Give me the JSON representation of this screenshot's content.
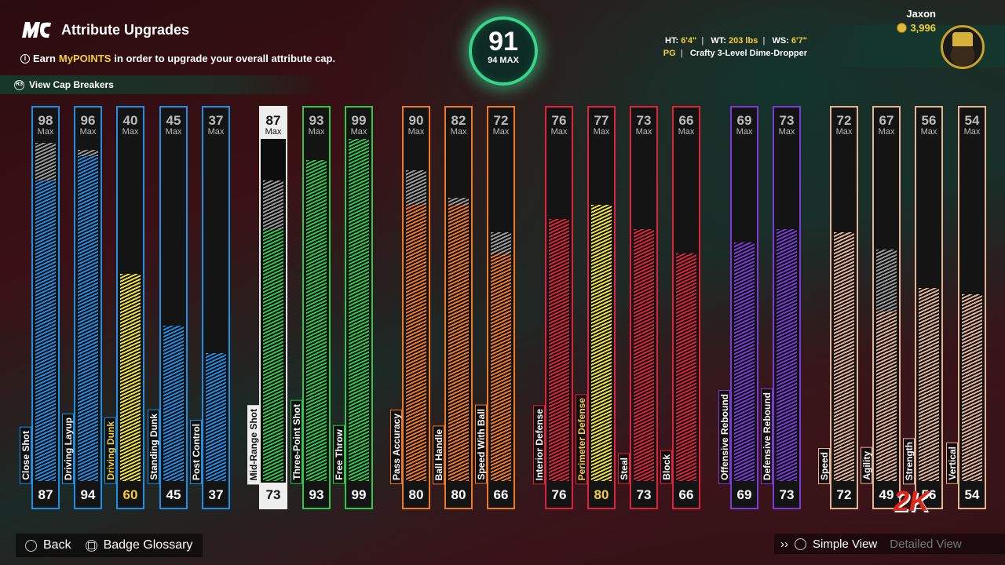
{
  "header": {
    "logo": "MC",
    "title": "Attribute Upgrades",
    "info_prefix": "Earn",
    "info_highlight": "MyPOINTS",
    "info_suffix": "in order to upgrade your overall attribute cap.",
    "cap_breakers_label": "View Cap Breakers"
  },
  "overall": {
    "value": "91",
    "max_label": "94 MAX"
  },
  "player": {
    "ht_label": "HT:",
    "ht": "6'4\"",
    "wt_label": "WT:",
    "wt": "203 lbs",
    "ws_label": "WS:",
    "ws": "6'7\"",
    "position": "PG",
    "archetype": "Crafty 3-Level Dime-Dropper",
    "name": "Jaxon",
    "coins": "3,996"
  },
  "max_word": "Max",
  "attributes": [
    {
      "name": "Close Shot",
      "current": 87,
      "potential": 87,
      "max": 98,
      "group": "finishing"
    },
    {
      "name": "Driving Layup",
      "current": 94,
      "potential": 94,
      "max": 96,
      "group": "finishing"
    },
    {
      "name": "Driving Dunk",
      "current": 60,
      "potential": 60,
      "max": 40,
      "group": "finishing",
      "highlight": true
    },
    {
      "name": "Standing Dunk",
      "current": 45,
      "potential": 45,
      "max": 45,
      "group": "finishing"
    },
    {
      "name": "Post Control",
      "current": 37,
      "potential": 37,
      "max": 37,
      "group": "finishing"
    },
    {
      "name": "Mid-Range Shot",
      "current": 73,
      "potential": 73,
      "max": 87,
      "group": "shooting",
      "selected": true
    },
    {
      "name": "Three-Point Shot",
      "current": 93,
      "potential": 93,
      "max": 93,
      "group": "shooting"
    },
    {
      "name": "Free Throw",
      "current": 99,
      "potential": 99,
      "max": 99,
      "group": "shooting"
    },
    {
      "name": "Pass Accuracy",
      "current": 80,
      "potential": 80,
      "max": 90,
      "group": "playmaking"
    },
    {
      "name": "Ball Handle",
      "current": 80,
      "potential": 80,
      "max": 82,
      "group": "playmaking"
    },
    {
      "name": "Speed With Ball",
      "current": 66,
      "potential": 66,
      "max": 72,
      "group": "playmaking"
    },
    {
      "name": "Interior Defense",
      "current": 76,
      "potential": 76,
      "max": 76,
      "group": "defense"
    },
    {
      "name": "Perimeter Defense",
      "current": 80,
      "potential": 80,
      "max": 77,
      "group": "defense",
      "highlight": true
    },
    {
      "name": "Steal",
      "current": 73,
      "potential": 73,
      "max": 73,
      "group": "defense"
    },
    {
      "name": "Block",
      "current": 66,
      "potential": 66,
      "max": 66,
      "group": "defense"
    },
    {
      "name": "Offensive Rebound",
      "current": 69,
      "potential": 69,
      "max": 69,
      "group": "rebounding"
    },
    {
      "name": "Defensive Rebound",
      "current": 73,
      "potential": 73,
      "max": 73,
      "group": "rebounding"
    },
    {
      "name": "Speed",
      "current": 72,
      "potential": 72,
      "max": 72,
      "group": "physicals"
    },
    {
      "name": "Agility",
      "current": 49,
      "potential": 49,
      "max": 67,
      "group": "physicals"
    },
    {
      "name": "Strength",
      "current": 56,
      "potential": 56,
      "max": 56,
      "group": "physicals"
    },
    {
      "name": "Vertical",
      "current": 54,
      "potential": 54,
      "max": 54,
      "group": "physicals"
    }
  ],
  "group_colors": {
    "finishing": "#1f8fe6",
    "shooting": "#2ec84a",
    "playmaking": "#f07a22",
    "defense": "#e0233d",
    "rebounding": "#7a3bd6",
    "physicals": "#e5b394"
  },
  "highlight_color": "#f3e62a",
  "footer": {
    "back": "Back",
    "glossary": "Badge Glossary",
    "simple_view": "Simple View",
    "detailed_view": "Detailed View"
  },
  "brand": "2K"
}
